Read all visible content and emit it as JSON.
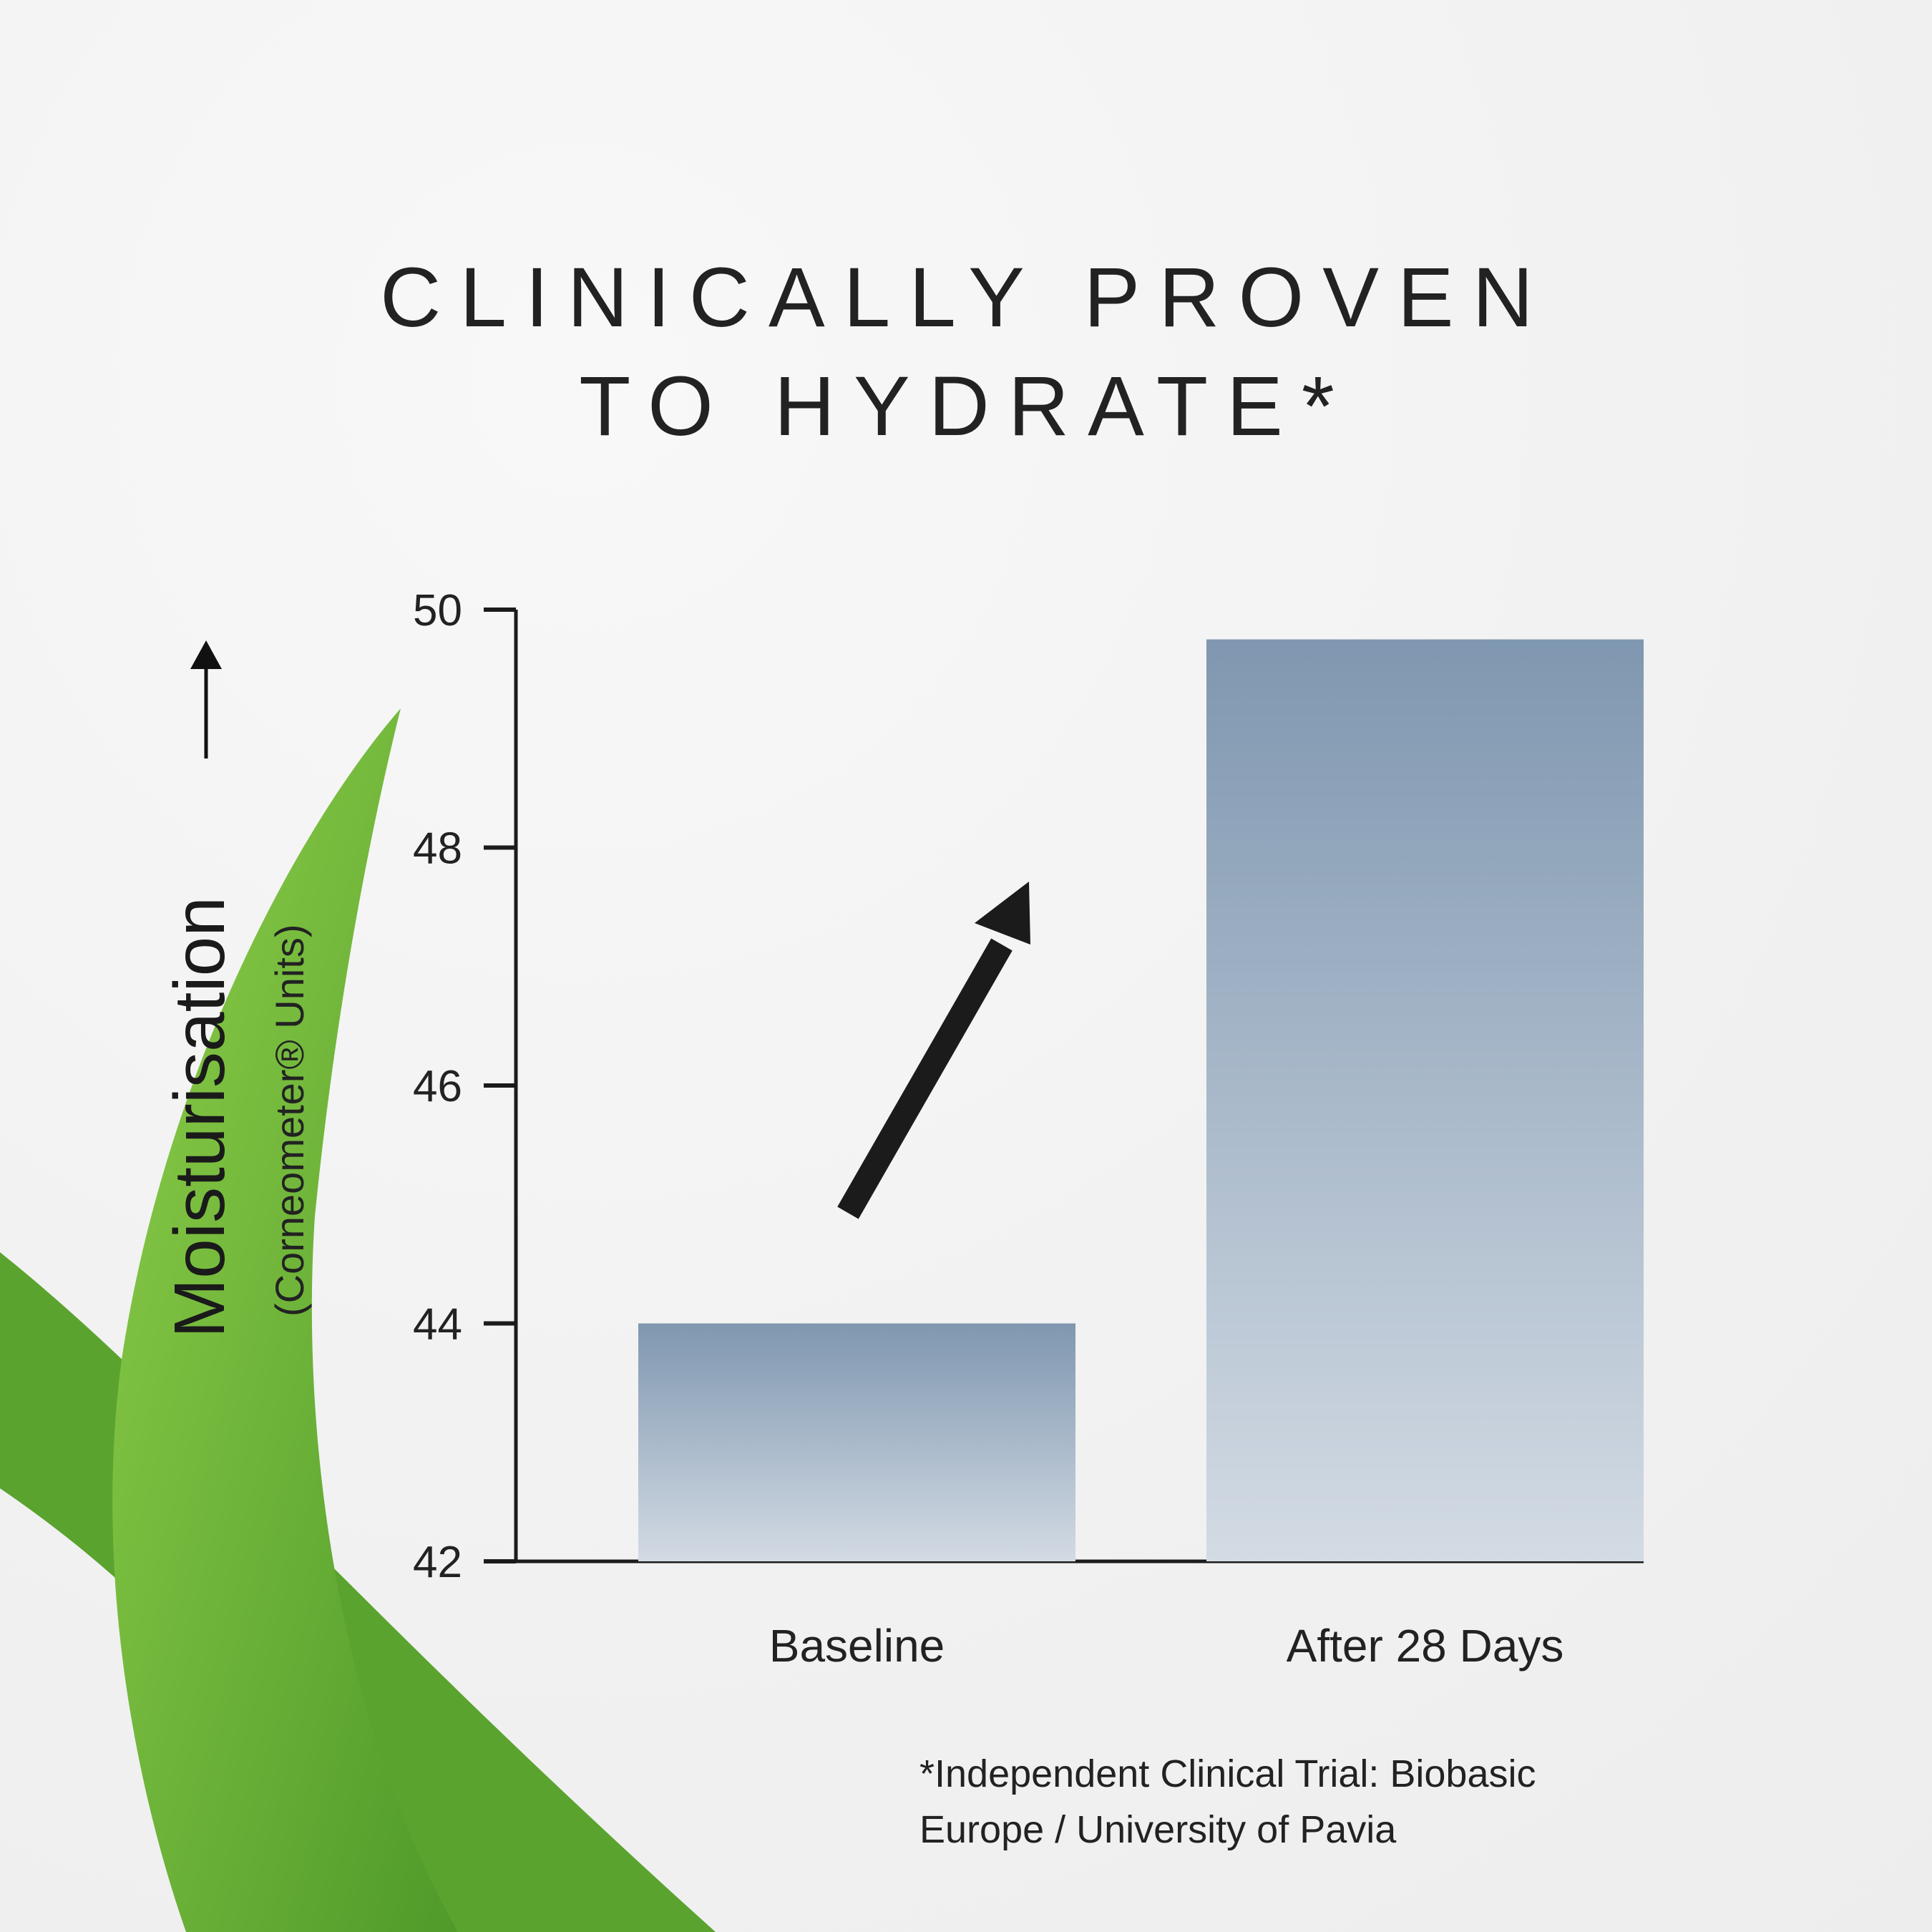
{
  "title": {
    "line1": "CLINICALLY PROVEN",
    "line2": "TO HYDRATE*"
  },
  "footnote": {
    "line1": "*Independent Clinical Trial: Biobasic",
    "line2": "Europe / University of Pavia"
  },
  "colors": {
    "bar_top": "#7f97b0",
    "bar_bottom": "#d3dbe4",
    "leaf": "#6fb33a",
    "text": "#1f1f1f"
  },
  "chart_data": {
    "type": "bar",
    "categories": [
      "Baseline",
      "After 28 Days"
    ],
    "values": [
      44.0,
      49.75
    ],
    "ylabel": "Moisturisation",
    "yunits": "(Corneometer® Units)",
    "ylim": [
      42,
      50
    ],
    "yticks": [
      "42",
      "44",
      "46",
      "48",
      "50"
    ],
    "grid": false,
    "annotation": "upward arrow between bars"
  }
}
